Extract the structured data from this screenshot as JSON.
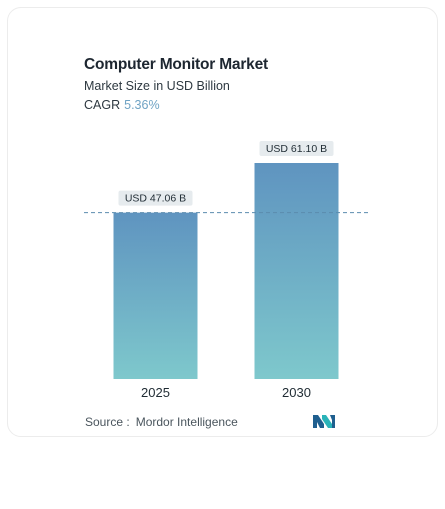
{
  "header": {
    "title": "Computer Monitor Market",
    "subtitle": "Market Size in USD Billion",
    "cagr_label": "CAGR",
    "cagr_value": "5.36%"
  },
  "chart_data": {
    "type": "bar",
    "title": "Computer Monitor Market",
    "subtitle": "Market Size in USD Billion",
    "categories": [
      "2025",
      "2030"
    ],
    "values": [
      47.06,
      61.1
    ],
    "data_labels": [
      "USD 47.06 B",
      "USD 61.10 B"
    ],
    "reference_line": {
      "value": 47.06,
      "style": "dashed"
    },
    "ylim": [
      0,
      61.1
    ],
    "xlabel": "",
    "ylabel": "",
    "grid": false,
    "colors": {
      "bar_top": "#5f94c0",
      "bar_bottom": "#7ec8cc",
      "label_bg": "#e6ebee",
      "dash_line": "#5b8cae"
    }
  },
  "footer": {
    "source_label": "Source :",
    "source_value": "Mordor Intelligence",
    "logo_name": "mordor-intelligence-logo"
  }
}
